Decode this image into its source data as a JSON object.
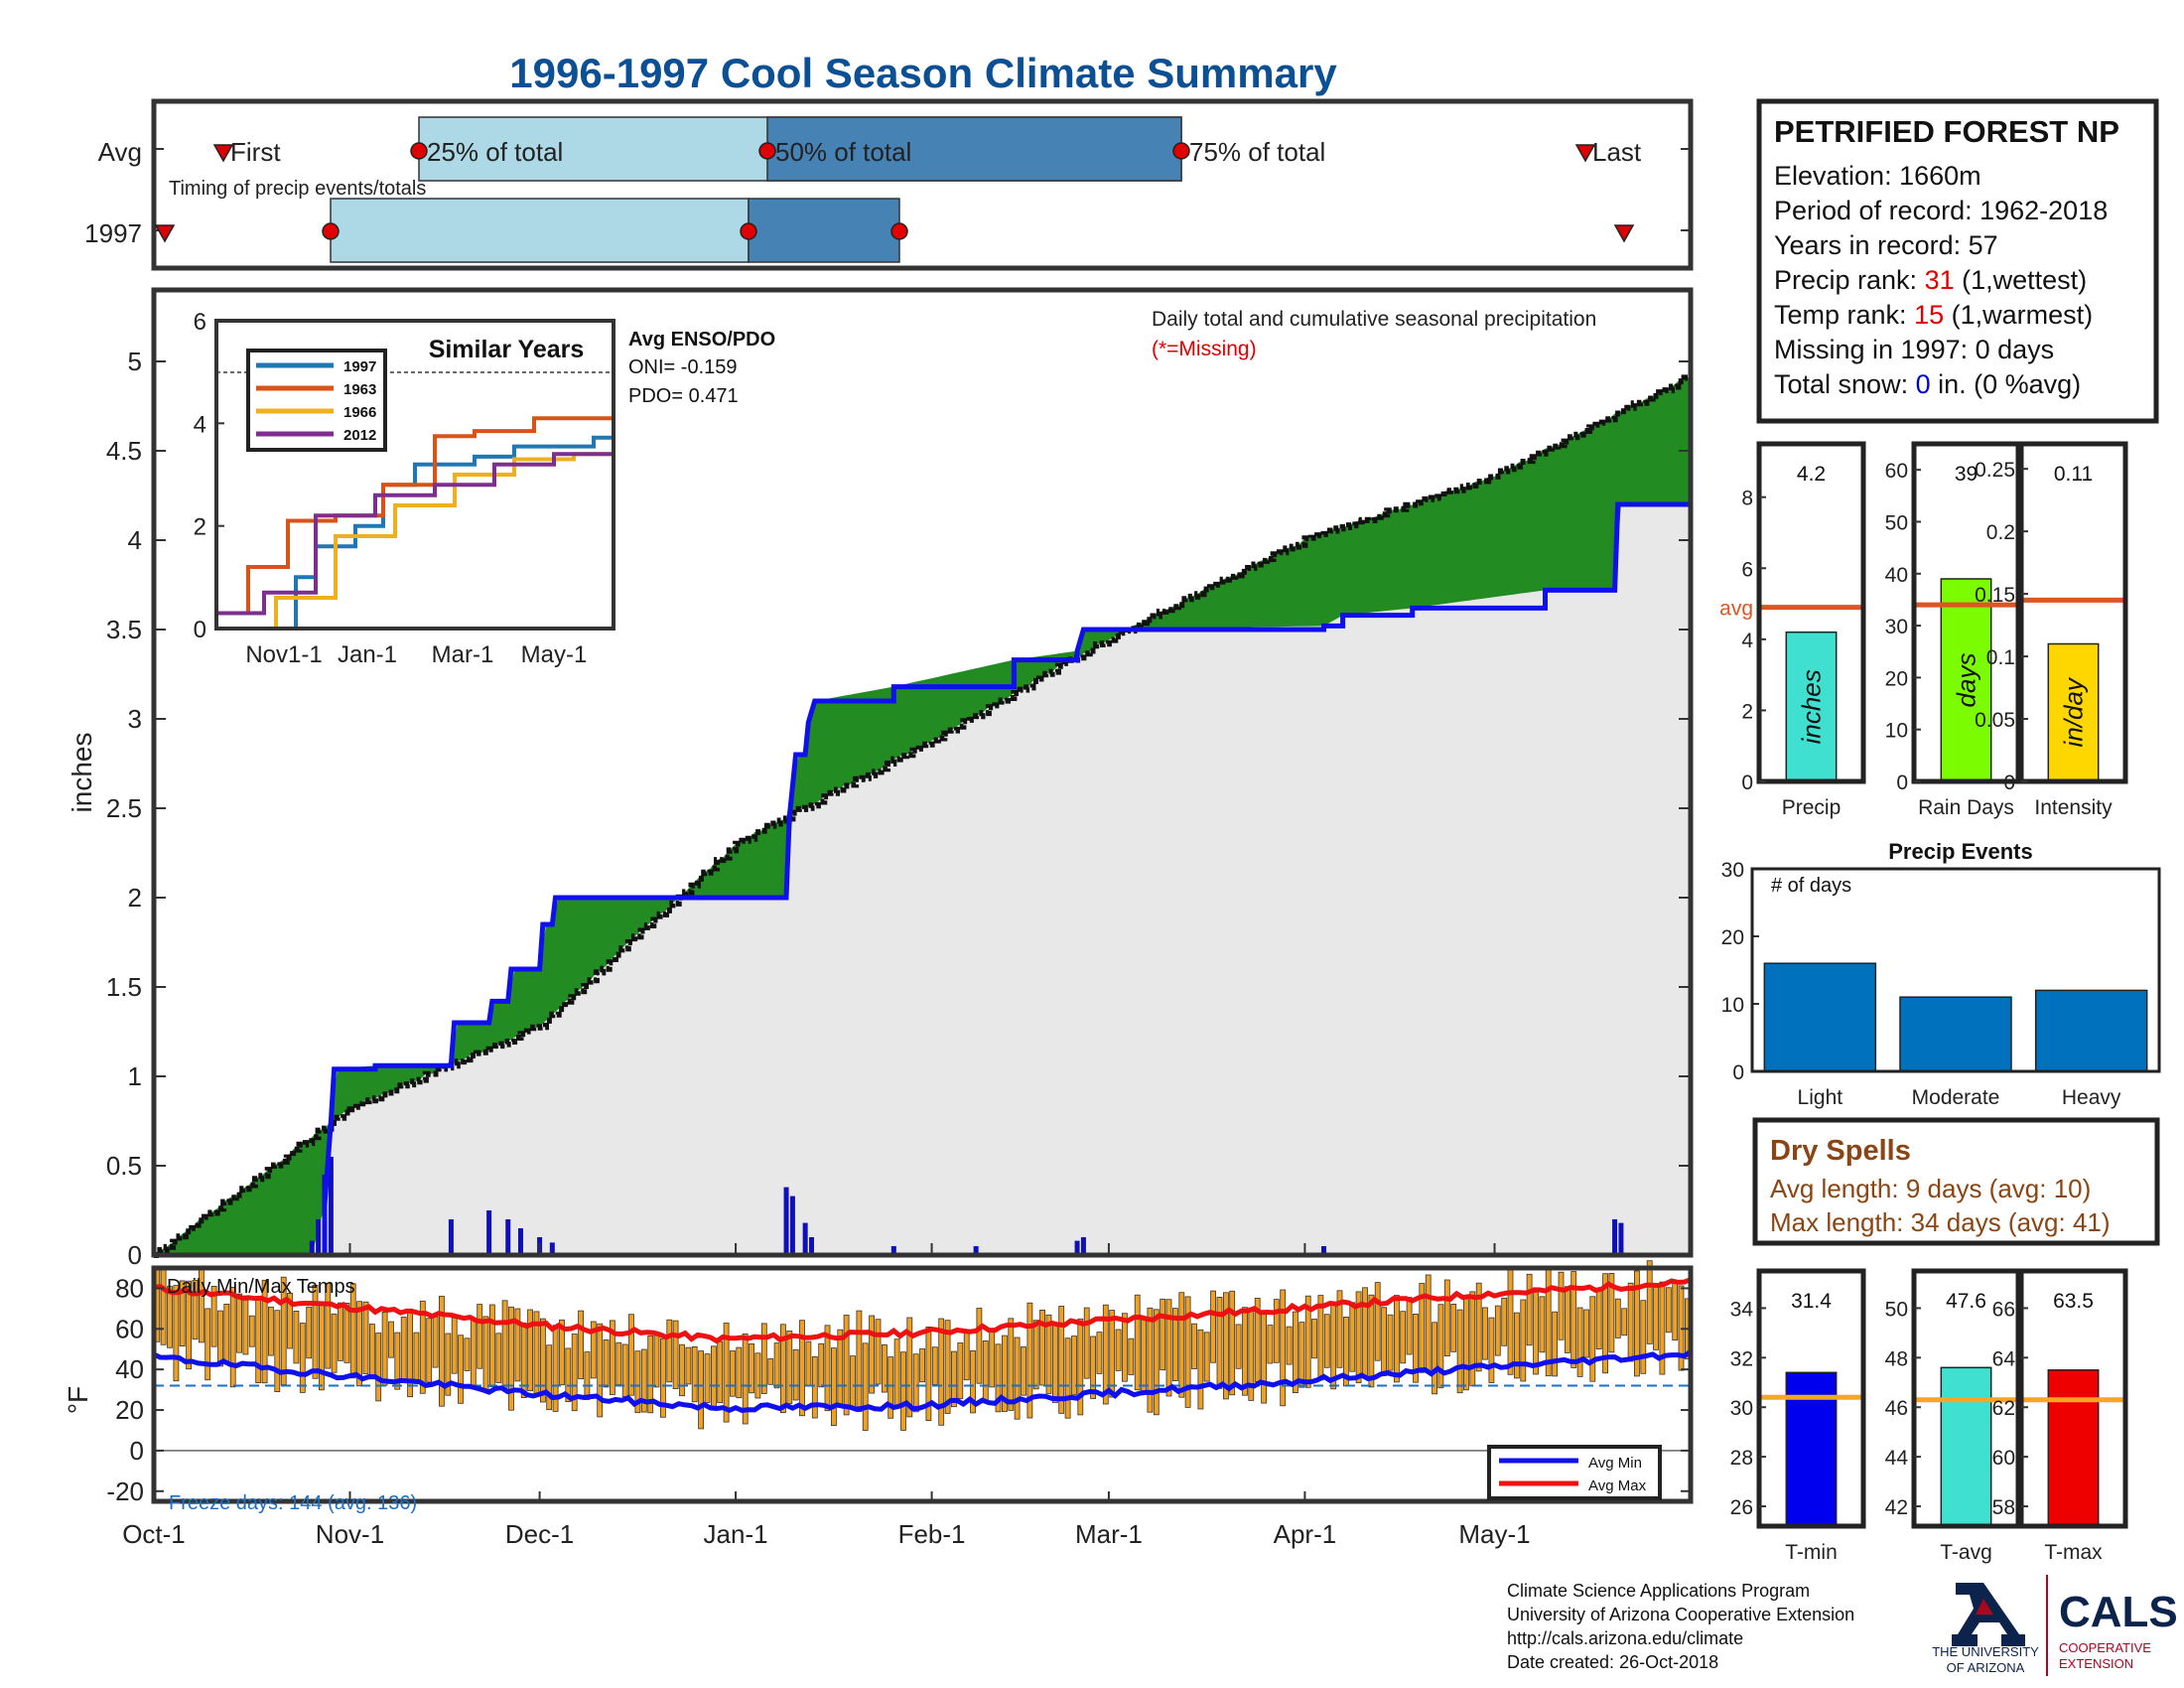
{
  "title": "1996-1997 Cool Season Climate Summary",
  "station": {
    "name": "PETRIFIED FOREST NP",
    "elevation": "Elevation: 1660m",
    "period": "Period of record: 1962-2018",
    "years": "Years in record: 57",
    "precip_rank_label": "Precip rank: ",
    "precip_rank_value": "31",
    "precip_rank_note": " (1,wettest)",
    "temp_rank_label": "Temp rank: ",
    "temp_rank_value": "15",
    "temp_rank_note": " (1,warmest)",
    "missing": "Missing in 1997: 0 days",
    "snow_label": "Total snow: ",
    "snow_value": "0",
    "snow_note": " in. (0 %avg)"
  },
  "colors": {
    "title": "#0b4f94",
    "rank_red": "#e00000",
    "snow_blue": "#0000dd",
    "above": "#228b22",
    "below": "#b8860b",
    "cum_line": "#1010ee",
    "avg_line": "#dd5522",
    "dry": "#8b4513",
    "freeze": "#1c6fc4"
  },
  "timing": {
    "row_avg_label": "Avg",
    "row_year_label": "1997",
    "note": "Timing of precip events/totals",
    "first_label": "First",
    "p25_label": "25% of total",
    "p50_label": "50% of total",
    "p75_label": "75% of total",
    "last_label": "Last"
  },
  "main": {
    "ylabel": "inches",
    "note": "Daily total and cumulative seasonal precipitation",
    "missing_note": "(*=Missing)",
    "xticks": [
      "Oct-1",
      "Nov-1",
      "Dec-1",
      "Jan-1",
      "Feb-1",
      "Mar-1",
      "Apr-1",
      "May-1"
    ],
    "yticks": [
      "0",
      "0.5",
      "1",
      "1.5",
      "2",
      "2.5",
      "3",
      "3.5",
      "4",
      "4.5",
      "5"
    ]
  },
  "inset": {
    "title": "Similar Years",
    "legend": [
      "1997",
      "1963",
      "1966",
      "2012"
    ],
    "series_colors": [
      "#1f77b4",
      "#d95319",
      "#edb120",
      "#7e2f8e"
    ],
    "xticks": [
      "Nov1-1",
      "Jan-1",
      "Mar-1",
      "May-1"
    ],
    "yticks": [
      "0",
      "2",
      "4",
      "6"
    ],
    "enso_title": "Avg ENSO/PDO",
    "oni": "ONI= -0.159",
    "pdo": "PDO= 0.471"
  },
  "temp": {
    "title": "Daily Min/Max Temps",
    "ylabel": "°F",
    "yticks": [
      "80",
      "60",
      "40",
      "20",
      "0",
      "-20"
    ],
    "freeze": "Freeze days: 144 (avg. 136)",
    "legend_min": "Avg Min",
    "legend_max": "Avg Max"
  },
  "summary": {
    "precip": {
      "value_text": "4.2",
      "unit": "inches",
      "label": "Precip",
      "yticks": [
        "0",
        "2",
        "4",
        "6",
        "8"
      ],
      "avg_text": "avg"
    },
    "rain_days": {
      "value_text": "39",
      "unit": "days",
      "label": "Rain Days",
      "yticks": [
        "0",
        "10",
        "20",
        "30",
        "40",
        "50",
        "60"
      ]
    },
    "intensity": {
      "value_text": "0.11",
      "unit": "in/day",
      "label": "Intensity",
      "yticks": [
        "0",
        "0.05",
        "0.1",
        "0.15",
        "0.2",
        "0.25"
      ]
    }
  },
  "events": {
    "title": "Precip Events",
    "note": "# of days",
    "categories": [
      "Light",
      "Moderate",
      "Heavy"
    ],
    "yticks": [
      "0",
      "10",
      "20",
      "30"
    ]
  },
  "dry_spells": {
    "title": "Dry Spells",
    "avg": "Avg length: 9 days (avg: 10)",
    "max": "Max length: 34 days (avg: 41)"
  },
  "temp_summary": {
    "tmin": {
      "value_text": "31.4",
      "label": "T-min",
      "yticks": [
        "26",
        "28",
        "30",
        "32",
        "34"
      ]
    },
    "tavg": {
      "value_text": "47.6",
      "label": "T-avg",
      "yticks": [
        "42",
        "44",
        "46",
        "48",
        "50"
      ]
    },
    "tmax": {
      "value_text": "63.5",
      "label": "T-max",
      "yticks": [
        "58",
        "60",
        "62",
        "64",
        "66"
      ]
    }
  },
  "footer": {
    "line1": "Climate Science Applications Program",
    "line2": "University of Arizona Cooperative Extension",
    "line3": "http://cals.arizona.edu/climate",
    "line4": " Date created: 26-Oct-2018",
    "logo_ua1": "THE UNIVERSITY",
    "logo_ua2": "OF ARIZONA",
    "logo_cals": "CALS",
    "logo_coop1": "COOPERATIVE",
    "logo_coop2": "EXTENSION"
  },
  "chart_data": [
    {
      "type": "area",
      "title": "Daily total and cumulative seasonal precipitation",
      "ylabel": "inches",
      "ylim": [
        0,
        5.4
      ],
      "x_axis": "Oct-1 to Jun-1 (days)",
      "series": [
        {
          "name": "avg cumulative",
          "points": [
            [
              0,
              0
            ],
            [
              31,
              0.82
            ],
            [
              61,
              1.28
            ],
            [
              92,
              2.3
            ],
            [
              123,
              2.88
            ],
            [
              151,
              3.45
            ],
            [
              182,
              4.0
            ],
            [
              212,
              4.36
            ],
            [
              243,
              4.92
            ]
          ]
        },
        {
          "name": "1997 cumulative",
          "points": [
            [
              0,
              0
            ],
            [
              25,
              0
            ],
            [
              27,
              0.28
            ],
            [
              28,
              0.75
            ],
            [
              28.5,
              1.04
            ],
            [
              35,
              1.06
            ],
            [
              47,
              1.07
            ],
            [
              47.5,
              1.3
            ],
            [
              53,
              1.3
            ],
            [
              53.5,
              1.42
            ],
            [
              56,
              1.42
            ],
            [
              56.5,
              1.6
            ],
            [
              61,
              1.6
            ],
            [
              61.5,
              1.85
            ],
            [
              63,
              1.85
            ],
            [
              63.5,
              2.0
            ],
            [
              81,
              2.0
            ],
            [
              90,
              2.0
            ],
            [
              100,
              2.0
            ],
            [
              100.5,
              2.45
            ],
            [
              101.5,
              2.8
            ],
            [
              103,
              2.8
            ],
            [
              103.5,
              2.98
            ],
            [
              104.5,
              3.1
            ],
            [
              117,
              3.18
            ],
            [
              136,
              3.33
            ],
            [
              146,
              3.38
            ],
            [
              147,
              3.5
            ],
            [
              185,
              3.52
            ],
            [
              188,
              3.58
            ],
            [
              199,
              3.62
            ],
            [
              220,
              3.72
            ],
            [
              231,
              3.72
            ],
            [
              231.5,
              4.2
            ],
            [
              243,
              4.2
            ]
          ]
        }
      ],
      "daily_bars": [
        [
          25,
          0.08
        ],
        [
          26,
          0.2
        ],
        [
          27,
          0.45
        ],
        [
          28,
          0.55
        ],
        [
          47,
          0.2
        ],
        [
          53,
          0.25
        ],
        [
          56,
          0.2
        ],
        [
          58,
          0.15
        ],
        [
          61,
          0.1
        ],
        [
          63,
          0.07
        ],
        [
          100,
          0.38
        ],
        [
          101,
          0.33
        ],
        [
          103,
          0.18
        ],
        [
          104,
          0.1
        ],
        [
          117,
          0.05
        ],
        [
          130,
          0.05
        ],
        [
          146,
          0.08
        ],
        [
          147,
          0.1
        ],
        [
          185,
          0.05
        ],
        [
          231,
          0.2
        ],
        [
          232,
          0.18
        ]
      ]
    },
    {
      "type": "line",
      "title": "Similar Years",
      "ylim": [
        0,
        6
      ],
      "series": [
        {
          "name": "1997",
          "points": [
            [
              0,
              0
            ],
            [
              0.1,
              0
            ],
            [
              0.2,
              1.0
            ],
            [
              0.25,
              1.6
            ],
            [
              0.35,
              2.0
            ],
            [
              0.42,
              2.8
            ],
            [
              0.5,
              3.2
            ],
            [
              0.65,
              3.35
            ],
            [
              0.75,
              3.55
            ],
            [
              0.95,
              3.72
            ],
            [
              1,
              4.2
            ]
          ]
        },
        {
          "name": "1963",
          "points": [
            [
              0,
              0.3
            ],
            [
              0.08,
              1.2
            ],
            [
              0.18,
              2.1
            ],
            [
              0.3,
              2.2
            ],
            [
              0.42,
              2.8
            ],
            [
              0.55,
              3.75
            ],
            [
              0.65,
              3.85
            ],
            [
              0.8,
              4.1
            ],
            [
              1,
              4.2
            ]
          ]
        },
        {
          "name": "1966",
          "points": [
            [
              0,
              0
            ],
            [
              0.15,
              0.6
            ],
            [
              0.3,
              1.8
            ],
            [
              0.45,
              2.4
            ],
            [
              0.6,
              3.0
            ],
            [
              0.75,
              3.3
            ],
            [
              0.9,
              3.4
            ],
            [
              1,
              3.5
            ]
          ]
        },
        {
          "name": "2012",
          "points": [
            [
              0,
              0.3
            ],
            [
              0.12,
              0.7
            ],
            [
              0.25,
              2.2
            ],
            [
              0.4,
              2.6
            ],
            [
              0.55,
              2.8
            ],
            [
              0.7,
              3.2
            ],
            [
              0.85,
              3.4
            ],
            [
              1,
              3.5
            ]
          ]
        }
      ]
    },
    {
      "type": "bar",
      "title": "Daily Min/Max Temps",
      "ylim": [
        -25,
        90
      ],
      "series": [
        {
          "name": "Avg Max",
          "points": [
            [
              0,
              80
            ],
            [
              30,
              71
            ],
            [
              60,
              62
            ],
            [
              90,
              55
            ],
            [
              120,
              58
            ],
            [
              150,
              64
            ],
            [
              180,
              70
            ],
            [
              210,
              77
            ],
            [
              243,
              83
            ]
          ]
        },
        {
          "name": "Avg Min",
          "points": [
            [
              0,
              46
            ],
            [
              30,
              37
            ],
            [
              60,
              28
            ],
            [
              90,
              21
            ],
            [
              120,
              22
            ],
            [
              150,
              28
            ],
            [
              180,
              34
            ],
            [
              210,
              41
            ],
            [
              243,
              48
            ]
          ]
        }
      ]
    },
    {
      "type": "bar",
      "categories": [
        "Precip",
        "Rain Days",
        "Intensity"
      ],
      "values": [
        4.2,
        39,
        0.11
      ],
      "averages": [
        4.9,
        34,
        0.145
      ]
    },
    {
      "type": "bar",
      "title": "Precip Events",
      "categories": [
        "Light",
        "Moderate",
        "Heavy"
      ],
      "values": [
        16,
        11,
        12
      ],
      "ylim": [
        0,
        30
      ]
    },
    {
      "type": "bar",
      "categories": [
        "T-min",
        "T-avg",
        "T-max"
      ],
      "values": [
        31.4,
        47.6,
        63.5
      ],
      "averages": [
        30.4,
        46.3,
        62.3
      ]
    }
  ]
}
